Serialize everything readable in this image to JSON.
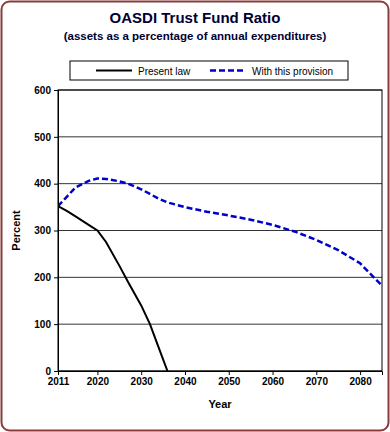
{
  "chart_data": {
    "type": "line",
    "title": "OASDI Trust Fund Ratio",
    "subtitle": "(assets as a percentage of annual expenditures)",
    "x_label": "Year",
    "y_label": "Percent",
    "x": [
      2011,
      2013,
      2015,
      2018,
      2020,
      2022,
      2025,
      2027,
      2030,
      2032,
      2034,
      2036,
      2040,
      2045,
      2050,
      2055,
      2060,
      2065,
      2070,
      2075,
      2080,
      2085
    ],
    "series": [
      {
        "name": "Present law",
        "color": "#000000",
        "line_style": "solid",
        "values": [
          352,
          342,
          330,
          312,
          300,
          275,
          225,
          190,
          140,
          100,
          50,
          0,
          null,
          null,
          null,
          null,
          null,
          null,
          null,
          null,
          null,
          null
        ]
      },
      {
        "name": "With this provision",
        "color": "#0000cc",
        "line_style": "dashed",
        "values": [
          352,
          372,
          392,
          406,
          411,
          410,
          405,
          400,
          388,
          378,
          368,
          360,
          350,
          340,
          332,
          323,
          312,
          298,
          280,
          258,
          230,
          182
        ]
      }
    ],
    "xlim": [
      2011,
      2085
    ],
    "xticks": [
      2011,
      2020,
      2030,
      2040,
      2050,
      2060,
      2070,
      2080
    ],
    "ylim": [
      0,
      600
    ],
    "yticks": [
      0,
      100,
      200,
      300,
      400,
      500,
      600
    ],
    "grid": true,
    "legend": "top"
  }
}
